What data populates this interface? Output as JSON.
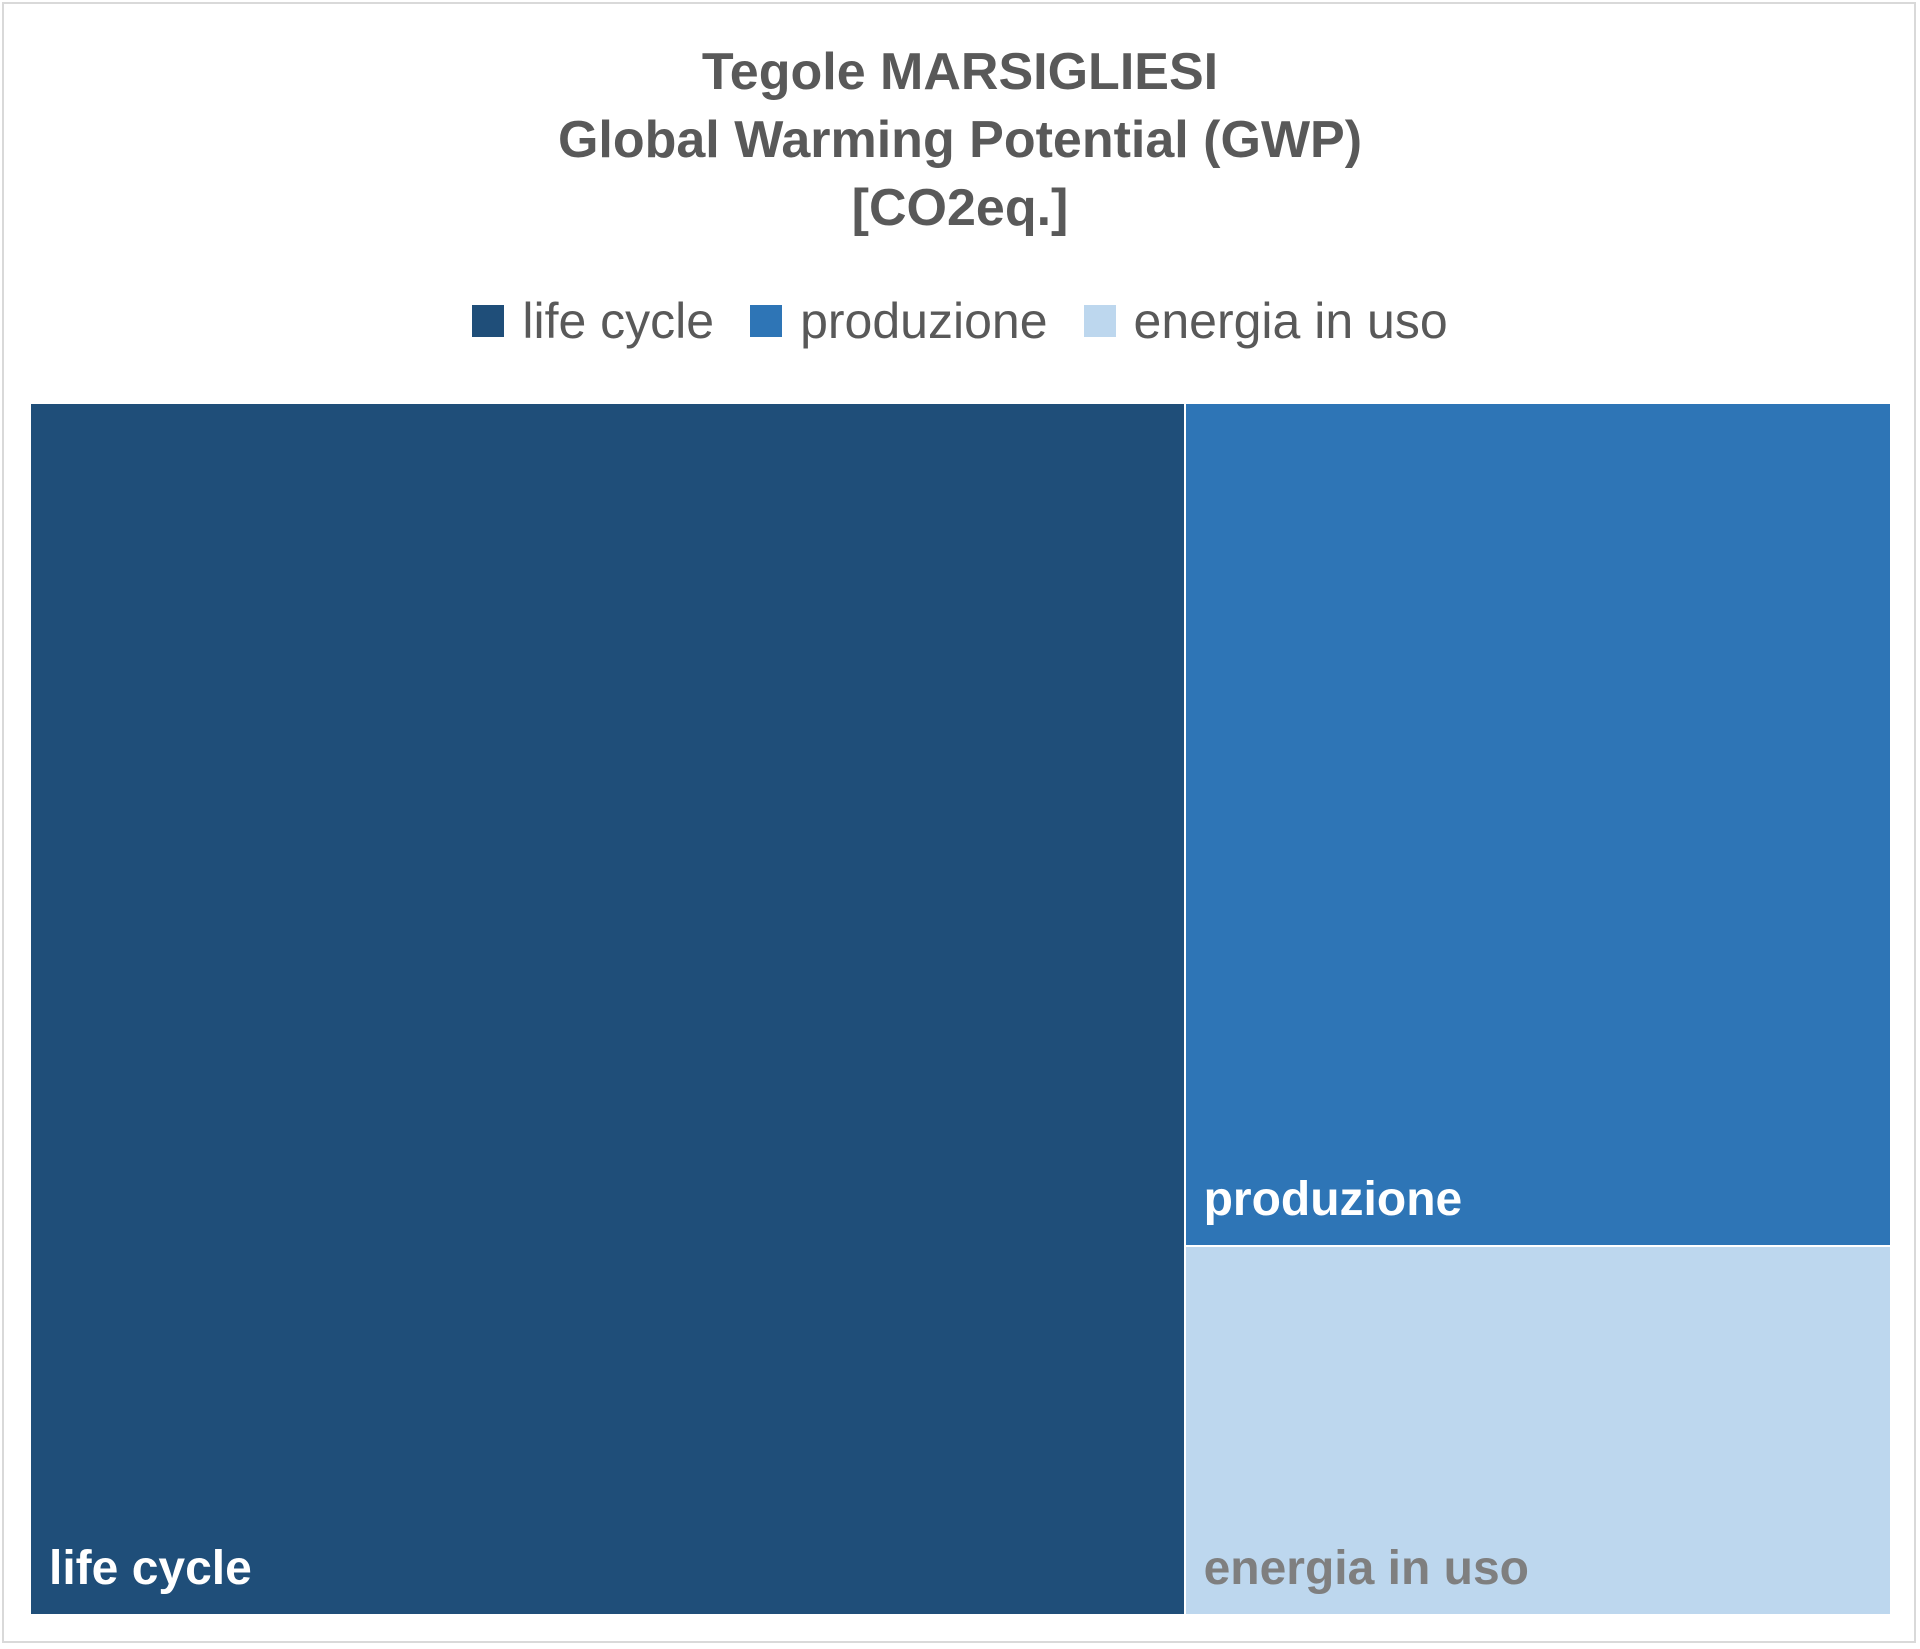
{
  "chart_data": {
    "type": "treemap",
    "title": [
      "Tegole MARSIGLIESI",
      "Global Warming Potential (GWP)",
      "[CO2eq.]"
    ],
    "legend": {
      "placement": "top",
      "items": [
        "life cycle",
        "produzione",
        "energia in uso"
      ]
    },
    "categories": [
      "life cycle",
      "produzione",
      "energia in uso"
    ],
    "values": [
      62.0,
      26.4,
      11.6
    ],
    "colors": [
      "#1f4e79",
      "#2e75b6",
      "#bdd7ee"
    ],
    "label_colors": [
      "#ffffff",
      "#ffffff",
      "#7f7f7f"
    ]
  }
}
